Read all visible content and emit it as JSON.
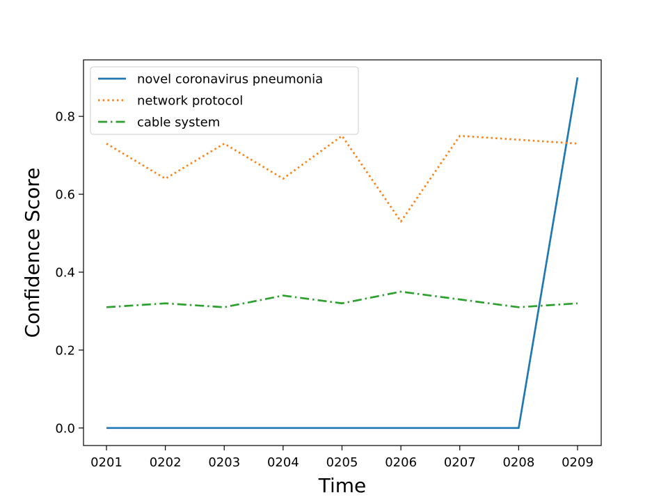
{
  "chart_data": {
    "type": "line",
    "title": "",
    "xlabel": "Time",
    "ylabel": "Confidence Score",
    "categories": [
      "0201",
      "0202",
      "0203",
      "0204",
      "0205",
      "0206",
      "0207",
      "0208",
      "0209"
    ],
    "ylim": [
      -0.045,
      0.945
    ],
    "yticks": [
      "0.0",
      "0.2",
      "0.4",
      "0.6",
      "0.8"
    ],
    "grid": false,
    "legend_position": "upper-left",
    "series": [
      {
        "name": "novel coronavirus pneumonia",
        "style": "solid",
        "color": "#1f77b4",
        "values": [
          0.0,
          0.0,
          0.0,
          0.0,
          0.0,
          0.0,
          0.0,
          0.0,
          0.9
        ]
      },
      {
        "name": "network protocol",
        "style": "dotted",
        "color": "#ff7f0e",
        "values": [
          0.73,
          0.64,
          0.73,
          0.64,
          0.75,
          0.53,
          0.75,
          0.74,
          0.73
        ]
      },
      {
        "name": "cable system",
        "style": "dashdot",
        "color": "#2ca02c",
        "values": [
          0.31,
          0.32,
          0.31,
          0.34,
          0.32,
          0.35,
          0.33,
          0.31,
          0.32
        ]
      }
    ]
  }
}
